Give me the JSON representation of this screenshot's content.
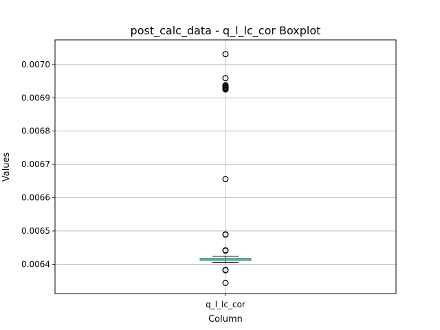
{
  "chart_data": {
    "type": "boxplot",
    "title": "post_calc_data - q_l_lc_cor Boxplot",
    "xlabel": "Column",
    "ylabel": "Values",
    "categories": [
      "q_l_lc_cor"
    ],
    "ylim": [
      0.006312,
      0.007074
    ],
    "yticks": [
      0.0064,
      0.0065,
      0.0066,
      0.0067,
      0.0068,
      0.0069,
      0.007
    ],
    "ytick_labels": [
      "0.0064",
      "0.0065",
      "0.0066",
      "0.0067",
      "0.0068",
      "0.0069",
      "0.0070"
    ],
    "grid": true,
    "boxes": [
      {
        "category": "q_l_lc_cor",
        "whisker_low": 0.006406,
        "q1": 0.006412,
        "median": 0.006415,
        "q3": 0.006418,
        "whisker_high": 0.006424,
        "outliers": [
          0.006344,
          0.006382,
          0.006383,
          0.006441,
          0.006442,
          0.006489,
          0.00649,
          0.006656,
          0.006925,
          0.006928,
          0.00693,
          0.006933,
          0.006935,
          0.006938,
          0.006959,
          0.007031
        ]
      }
    ],
    "colors": {
      "box": "#1f77b4",
      "median": "#2ca02c",
      "whisker": "#000000",
      "grid": "#b0b0b0"
    }
  }
}
